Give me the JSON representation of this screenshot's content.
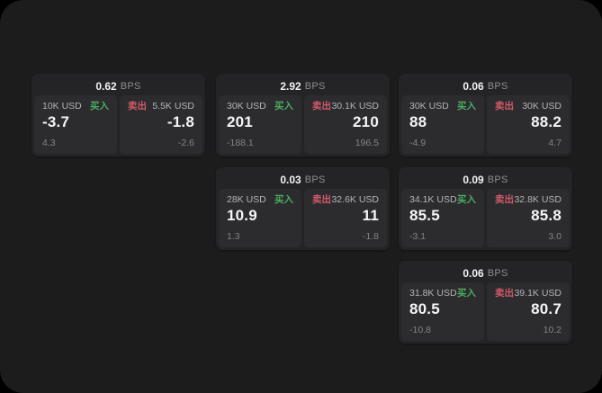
{
  "theme": {
    "page_bg": "#000000",
    "panel_bg": "#1c1c1d",
    "card_bg": "#242427",
    "tile_bg": "#2c2c2f",
    "buy_color": "#4aad5f",
    "sell_color": "#d25a68",
    "value_color": "#f5f5f5",
    "label_color": "#b4b4b4",
    "muted_color": "#838383"
  },
  "labels": {
    "bps_suffix": "BPS",
    "buy": "买入",
    "sell": "卖出"
  },
  "cards": [
    {
      "row": 1,
      "col": 1,
      "bps": "0.62",
      "buy": {
        "amount": "10K USD",
        "value": "-3.7",
        "delta": "4.3"
      },
      "sell": {
        "amount": "5.5K USD",
        "value": "-1.8",
        "delta": "-2.6"
      }
    },
    {
      "row": 1,
      "col": 2,
      "bps": "2.92",
      "buy": {
        "amount": "30K USD",
        "value": "201",
        "delta": "-188.1"
      },
      "sell": {
        "amount": "30.1K USD",
        "value": "210",
        "delta": "196.5"
      }
    },
    {
      "row": 1,
      "col": 3,
      "bps": "0.06",
      "buy": {
        "amount": "30K USD",
        "value": "88",
        "delta": "-4.9"
      },
      "sell": {
        "amount": "30K USD",
        "value": "88.2",
        "delta": "4.7"
      }
    },
    {
      "row": 2,
      "col": 2,
      "bps": "0.03",
      "buy": {
        "amount": "28K USD",
        "value": "10.9",
        "delta": "1.3"
      },
      "sell": {
        "amount": "32.6K USD",
        "value": "11",
        "delta": "-1.8"
      }
    },
    {
      "row": 2,
      "col": 3,
      "bps": "0.09",
      "buy": {
        "amount": "34.1K USD",
        "value": "85.5",
        "delta": "-3.1"
      },
      "sell": {
        "amount": "32.8K USD",
        "value": "85.8",
        "delta": "3.0"
      }
    },
    {
      "row": 3,
      "col": 3,
      "bps": "0.06",
      "buy": {
        "amount": "31.8K USD",
        "value": "80.5",
        "delta": "-10.8"
      },
      "sell": {
        "amount": "39.1K USD",
        "value": "80.7",
        "delta": "10.2"
      }
    }
  ]
}
